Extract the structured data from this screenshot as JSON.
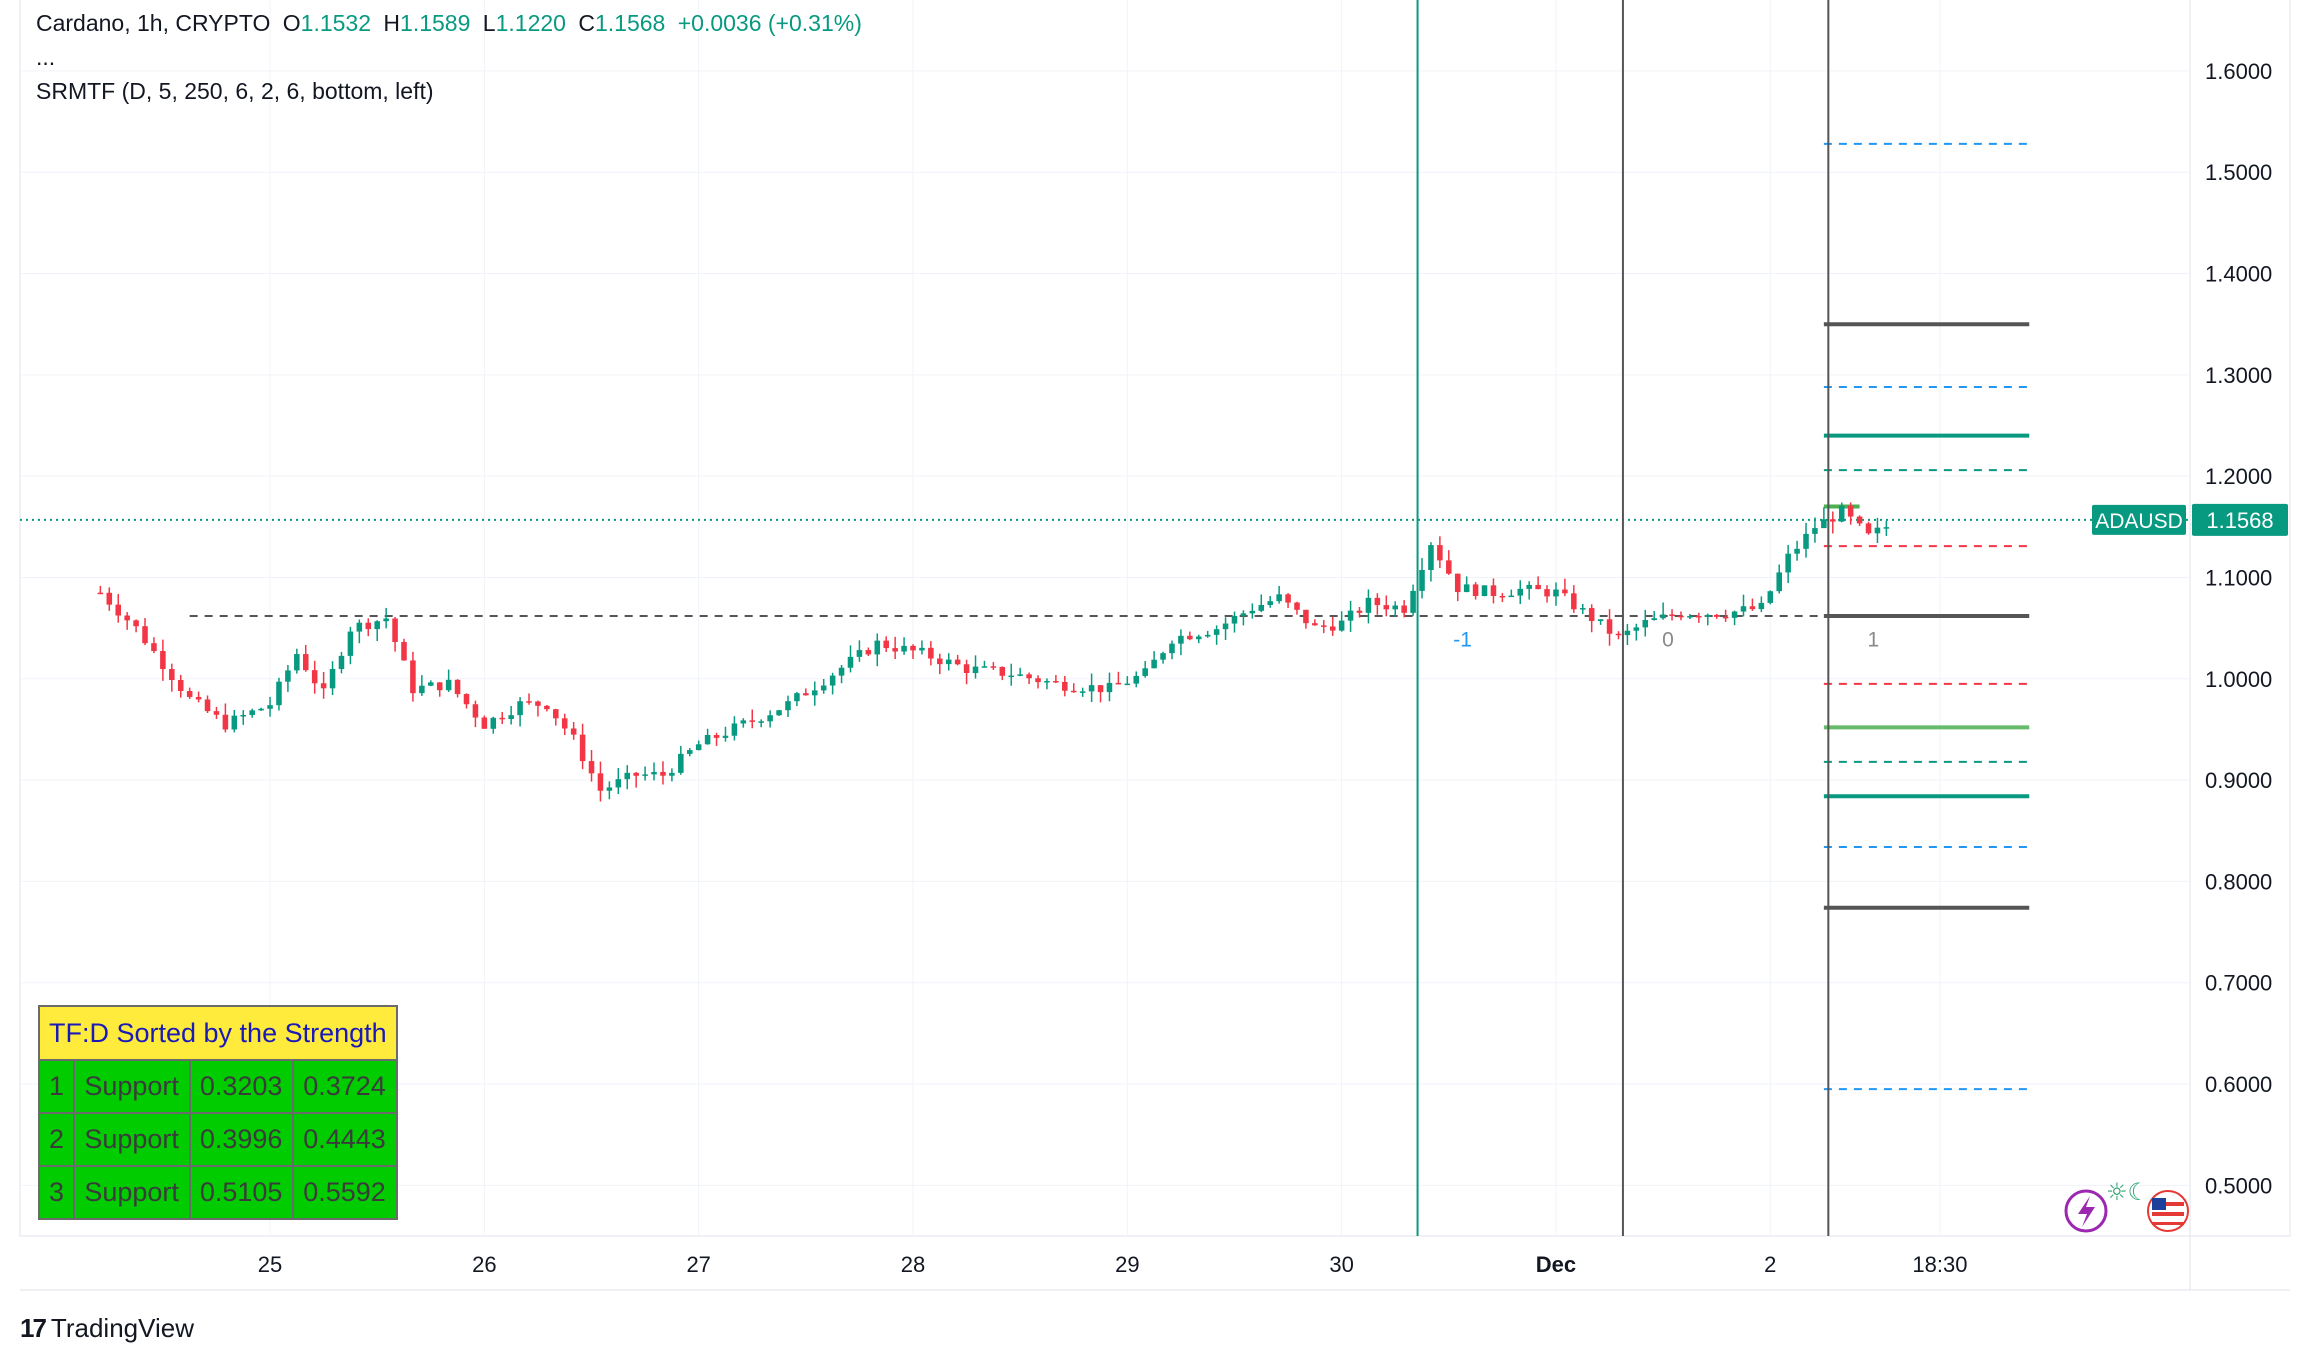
{
  "legend": {
    "symbol": "Cardano, 1h, CRYPTO",
    "open_label": "O",
    "open": "1.1532",
    "high_label": "H",
    "high": "1.1589",
    "low_label": "L",
    "low": "1.1220",
    "close_label": "C",
    "close": "1.1568",
    "change": "+0.0036 (+0.31%)",
    "more": "...",
    "indicator": "SRMTF (D, 5, 250, 6, 2, 6, bottom, left)"
  },
  "table": {
    "title": "TF:D Sorted by the Strength",
    "rows": [
      {
        "rank": "1",
        "type": "Support",
        "low": "0.3203",
        "high": "0.3724"
      },
      {
        "rank": "2",
        "type": "Support",
        "low": "0.3996",
        "high": "0.4443"
      },
      {
        "rank": "3",
        "type": "Support",
        "low": "0.5105",
        "high": "0.5592"
      }
    ]
  },
  "brand": {
    "name": "TradingView"
  },
  "chart_data": {
    "type": "candlestick",
    "symbol": "ADAUSD",
    "price_tag": "1.1568",
    "last_price": 1.1568,
    "ylim": [
      0.45,
      1.67
    ],
    "yticks": [
      {
        "value": 1.6,
        "label": "1.6000"
      },
      {
        "value": 1.5,
        "label": "1.5000"
      },
      {
        "value": 1.4,
        "label": "1.4000"
      },
      {
        "value": 1.3,
        "label": "1.3000"
      },
      {
        "value": 1.2,
        "label": "1.2000"
      },
      {
        "value": 1.1,
        "label": "1.1000"
      },
      {
        "value": 1.0,
        "label": "1.0000"
      },
      {
        "value": 0.9,
        "label": "0.9000"
      },
      {
        "value": 0.8,
        "label": "0.8000"
      },
      {
        "value": 0.7,
        "label": "0.7000"
      },
      {
        "value": 0.6,
        "label": "0.6000"
      },
      {
        "value": 0.5,
        "label": "0.5000"
      }
    ],
    "xlim_hours": [
      -28,
      215
    ],
    "xticks": [
      {
        "hour": 0,
        "label": "25",
        "bold": false
      },
      {
        "hour": 24,
        "label": "26",
        "bold": false
      },
      {
        "hour": 48,
        "label": "27",
        "bold": false
      },
      {
        "hour": 72,
        "label": "28",
        "bold": false
      },
      {
        "hour": 96,
        "label": "29",
        "bold": false
      },
      {
        "hour": 120,
        "label": "30",
        "bold": false
      },
      {
        "hour": 144,
        "label": "Dec",
        "bold": true
      },
      {
        "hour": 168,
        "label": "2",
        "bold": false
      },
      {
        "hour": 187,
        "label": "18:30",
        "bold": false
      }
    ],
    "vlines": [
      {
        "hour": 128.5,
        "color": "#089981",
        "label": "-1",
        "label_color": "#2196f3",
        "label_value": 1.04
      },
      {
        "hour": 151.5,
        "color": "#555555",
        "label": "0",
        "label_color": "#8a8a8a",
        "label_value": 1.04
      },
      {
        "hour": 174.5,
        "color": "#555555",
        "label": "1",
        "label_color": "#8a8a8a",
        "label_value": 1.04
      }
    ],
    "hlines": [
      {
        "value": 1.062,
        "color": "#555555",
        "style": "dash",
        "from_hour": -9,
        "to_hour": 176
      },
      {
        "value": 1.528,
        "color": "#2196f3",
        "style": "dash",
        "from_hour": 174,
        "to_hour": 197
      },
      {
        "value": 1.35,
        "color": "#555555",
        "style": "solid",
        "from_hour": 174,
        "to_hour": 197
      },
      {
        "value": 1.288,
        "color": "#2196f3",
        "style": "dash",
        "from_hour": 174,
        "to_hour": 197
      },
      {
        "value": 1.24,
        "color": "#089981",
        "style": "solid",
        "from_hour": 174,
        "to_hour": 197
      },
      {
        "value": 1.206,
        "color": "#089981",
        "style": "dash",
        "from_hour": 174,
        "to_hour": 197
      },
      {
        "value": 1.17,
        "color": "#4caf50",
        "style": "solid",
        "from_hour": 174,
        "to_hour": 178
      },
      {
        "value": 1.131,
        "color": "#f23645",
        "style": "dash",
        "from_hour": 174,
        "to_hour": 197
      },
      {
        "value": 1.062,
        "color": "#555555",
        "style": "solid",
        "from_hour": 174,
        "to_hour": 197
      },
      {
        "value": 0.995,
        "color": "#f23645",
        "style": "dash",
        "from_hour": 174,
        "to_hour": 197
      },
      {
        "value": 0.952,
        "color": "#66bb6a",
        "style": "solid",
        "from_hour": 174,
        "to_hour": 197
      },
      {
        "value": 0.918,
        "color": "#089981",
        "style": "dash",
        "from_hour": 174,
        "to_hour": 197
      },
      {
        "value": 0.884,
        "color": "#089981",
        "style": "solid",
        "from_hour": 174,
        "to_hour": 197
      },
      {
        "value": 0.834,
        "color": "#2196f3",
        "style": "dash",
        "from_hour": 174,
        "to_hour": 197
      },
      {
        "value": 0.774,
        "color": "#555555",
        "style": "solid",
        "from_hour": 174,
        "to_hour": 197
      },
      {
        "value": 0.595,
        "color": "#2196f3",
        "style": "dash",
        "from_hour": 174,
        "to_hour": 197
      }
    ],
    "anchors": [
      {
        "hour": -19,
        "value": 1.085
      },
      {
        "hour": -15,
        "value": 1.05
      },
      {
        "hour": -9,
        "value": 0.98
      },
      {
        "hour": -5,
        "value": 0.955
      },
      {
        "hour": 0,
        "value": 0.975
      },
      {
        "hour": 3,
        "value": 1.025
      },
      {
        "hour": 6,
        "value": 0.985
      },
      {
        "hour": 9,
        "value": 1.05
      },
      {
        "hour": 13,
        "value": 1.06
      },
      {
        "hour": 16,
        "value": 0.99
      },
      {
        "hour": 20,
        "value": 0.995
      },
      {
        "hour": 24,
        "value": 0.955
      },
      {
        "hour": 28,
        "value": 0.975
      },
      {
        "hour": 31,
        "value": 0.975
      },
      {
        "hour": 34,
        "value": 0.94
      },
      {
        "hour": 37,
        "value": 0.89
      },
      {
        "hour": 41,
        "value": 0.905
      },
      {
        "hour": 44,
        "value": 0.905
      },
      {
        "hour": 48,
        "value": 0.935
      },
      {
        "hour": 53,
        "value": 0.955
      },
      {
        "hour": 58,
        "value": 0.975
      },
      {
        "hour": 63,
        "value": 1.005
      },
      {
        "hour": 68,
        "value": 1.035
      },
      {
        "hour": 73,
        "value": 1.025
      },
      {
        "hour": 78,
        "value": 1.01
      },
      {
        "hour": 83,
        "value": 1.005
      },
      {
        "hour": 88,
        "value": 0.995
      },
      {
        "hour": 94,
        "value": 0.99
      },
      {
        "hour": 98,
        "value": 1.005
      },
      {
        "hour": 101,
        "value": 1.04
      },
      {
        "hour": 106,
        "value": 1.05
      },
      {
        "hour": 110,
        "value": 1.07
      },
      {
        "hour": 113,
        "value": 1.08
      },
      {
        "hour": 117,
        "value": 1.05
      },
      {
        "hour": 120,
        "value": 1.055
      },
      {
        "hour": 123,
        "value": 1.075
      },
      {
        "hour": 127,
        "value": 1.07
      },
      {
        "hour": 130,
        "value": 1.135
      },
      {
        "hour": 133,
        "value": 1.09
      },
      {
        "hour": 137,
        "value": 1.085
      },
      {
        "hour": 140,
        "value": 1.088
      },
      {
        "hour": 144,
        "value": 1.085
      },
      {
        "hour": 148,
        "value": 1.06
      },
      {
        "hour": 151,
        "value": 1.04
      },
      {
        "hour": 154,
        "value": 1.055
      },
      {
        "hour": 158,
        "value": 1.065
      },
      {
        "hour": 163,
        "value": 1.065
      },
      {
        "hour": 167,
        "value": 1.07
      },
      {
        "hour": 170,
        "value": 1.12
      },
      {
        "hour": 173,
        "value": 1.15
      },
      {
        "hour": 176,
        "value": 1.165
      },
      {
        "hour": 179,
        "value": 1.14
      },
      {
        "hour": 181,
        "value": 1.15
      }
    ]
  }
}
